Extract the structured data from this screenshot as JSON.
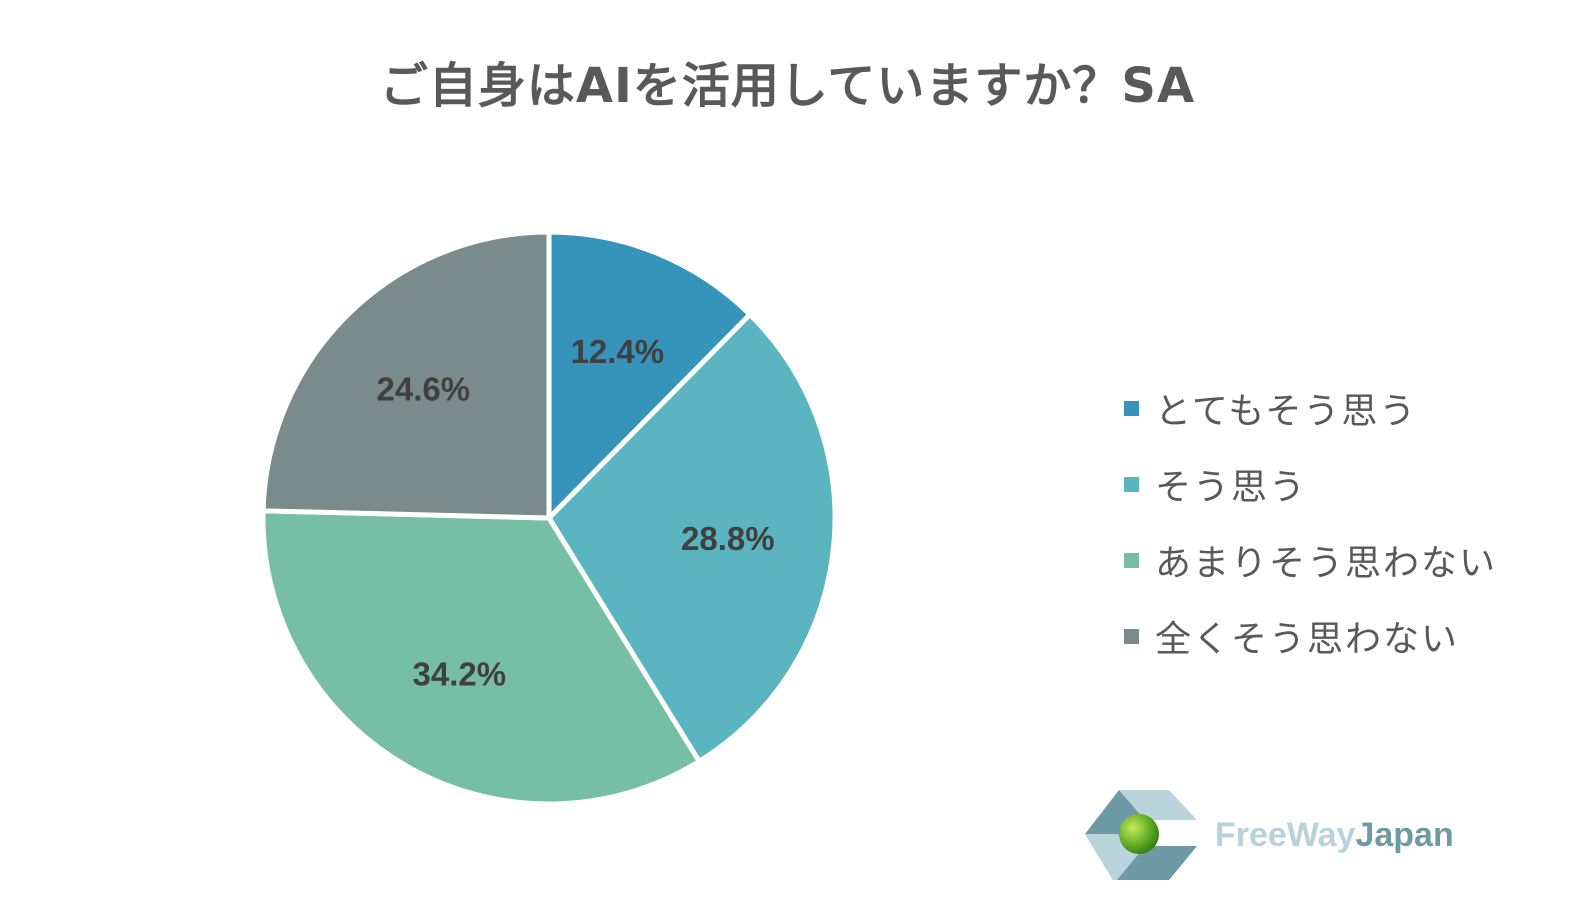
{
  "title": "ご自身はAIを活用していますか？SA",
  "chart_data": {
    "type": "pie",
    "title": "ご自身はAIを活用していますか？SA",
    "start_angle": "12 o'clock, clockwise",
    "legend_position": "right",
    "categories": [
      "とてもそう思う",
      "そう思う",
      "あまりそう思わない",
      "全くそう思わない"
    ],
    "values": [
      12.4,
      28.8,
      34.2,
      24.6
    ],
    "labels": [
      "12.4%",
      "28.8%",
      "34.2%",
      "24.6%"
    ],
    "colors": [
      "#3694bb",
      "#5bb5c1",
      "#77bea7",
      "#7a8b8b"
    ]
  },
  "logo": {
    "text_part1": "FreeWay",
    "text_part2": "Japan"
  }
}
